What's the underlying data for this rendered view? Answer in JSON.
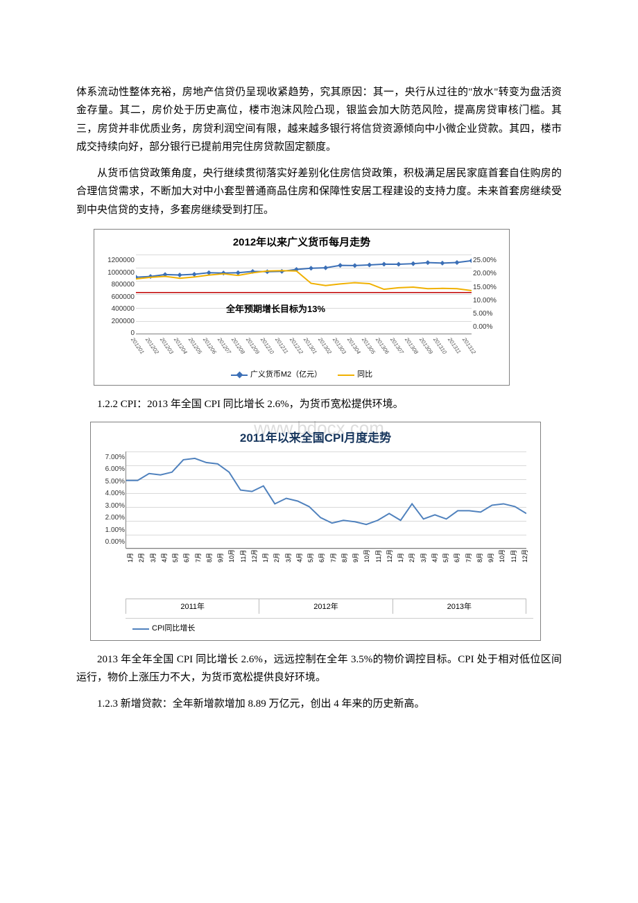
{
  "paragraphs": {
    "p1": "体系流动性整体充裕，房地产信贷仍呈现收紧趋势，究其原因：其一，央行从过往的\"放水\"转变为盘活资金存量。其二，房价处于历史高位，楼市泡沫风险凸现，银监会加大防范风险，提高房贷审核门槛。其三，房贷并非优质业务，房贷利润空间有限，越来越多银行将信贷资源倾向中小微企业贷款。其四，楼市成交持续向好，部分银行已提前用完住房贷款固定额度。",
    "p2": "从货币信贷政策角度，央行继续贯彻落实好差别化住房信贷政策，积极满足居民家庭首套自住购房的合理信贷需求，不断加大对中小套型普通商品住房和保障性安居工程建设的支持力度。未来首套房继续受到中央信贷的支持，多套房继续受到打压。",
    "s122": "1.2.2 CPI：2013 年全国 CPI 同比增长 2.6%，为货币宽松提供环境。",
    "p3": "2013 年全年全国 CPI 同比增长 2.6%，远远控制在全年 3.5%的物价调控目标。CPI 处于相对低位区间运行，物价上涨压力不大，为货币宽松提供良好环境。",
    "s123": "1.2.3 新增贷款：全年新增款增加 8.89 万亿元，创出 4 年来的历史新高。"
  },
  "watermark": "www.bdocx.com",
  "chart1": {
    "title": "2012年以来广义货币每月走势",
    "annotation": "全年预期增长目标为13%",
    "y_left_ticks": [
      "1200000",
      "1000000",
      "800000",
      "600000",
      "400000",
      "200000",
      "0"
    ],
    "y_right_ticks": [
      "25.00%",
      "20.00%",
      "15.00%",
      "10.00%",
      "5.00%",
      "0.00%"
    ],
    "x_labels": [
      "201201",
      "201202",
      "201203",
      "201204",
      "201205",
      "201206",
      "201207",
      "201208",
      "201209",
      "201210",
      "201211",
      "201212",
      "201301",
      "201302",
      "201303",
      "201304",
      "201305",
      "201306",
      "201307",
      "201308",
      "201309",
      "201310",
      "201311",
      "201312"
    ],
    "series_m2_name": "广义货币M2（亿元）",
    "series_m2_color": "#3b6fb6",
    "series_m2_values": [
      855890,
      867180,
      895600,
      889600,
      900500,
      924200,
      919100,
      924200,
      943700,
      939500,
      944800,
      974200,
      992100,
      998600,
      1035900,
      1032500,
      1042200,
      1054400,
      1052400,
      1061200,
      1077400,
      1070200,
      1079300,
      1106500
    ],
    "y_left_max": 1200000,
    "series_yoy_name": "同比",
    "series_yoy_color": "#f0b000",
    "series_yoy_values": [
      17.3,
      17.8,
      18.1,
      17.5,
      17.9,
      18.5,
      18.9,
      18.4,
      19.2,
      19.8,
      19.9,
      19.8,
      15.9,
      15.2,
      15.7,
      16.1,
      15.8,
      14.0,
      14.5,
      14.7,
      14.2,
      14.3,
      14.2,
      13.6
    ],
    "y_right_max": 25,
    "annotation_line_color": "#c00000",
    "grid_color": "#d9d9d9",
    "border_color": "#808080"
  },
  "chart2": {
    "title": "2011年以来全国CPI月度走势",
    "y_ticks": [
      "7.00%",
      "6.00%",
      "5.00%",
      "4.00%",
      "3.00%",
      "2.00%",
      "1.00%",
      "0.00%"
    ],
    "y_max": 7.0,
    "series_name": "CPI同比增长",
    "series_color": "#4f81bd",
    "years": [
      "2011年",
      "2012年",
      "2013年"
    ],
    "months": [
      "1月",
      "2月",
      "3月",
      "4月",
      "5月",
      "6月",
      "7月",
      "8月",
      "9月",
      "10月",
      "11月",
      "12月"
    ],
    "values": [
      4.9,
      4.9,
      5.4,
      5.3,
      5.5,
      6.4,
      6.5,
      6.2,
      6.1,
      5.5,
      4.2,
      4.1,
      4.5,
      3.2,
      3.6,
      3.4,
      3.0,
      2.2,
      1.8,
      2.0,
      1.9,
      1.7,
      2.0,
      2.5,
      2.0,
      3.2,
      2.1,
      2.4,
      2.1,
      2.7,
      2.7,
      2.6,
      3.1,
      3.2,
      3.0,
      2.5
    ],
    "grid_color": "#d9d9d9"
  }
}
